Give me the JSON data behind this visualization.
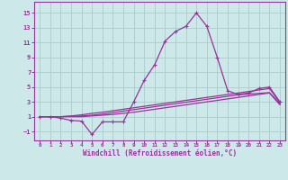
{
  "bg_color": "#cce8e8",
  "grid_color": "#aacccc",
  "line_color": "#993399",
  "xlabel": "Windchill (Refroidissement éolien,°C)",
  "xlim": [
    -0.5,
    23.5
  ],
  "ylim": [
    -2.2,
    16.5
  ],
  "yticks": [
    -1,
    1,
    3,
    5,
    7,
    9,
    11,
    13,
    15
  ],
  "xticks": [
    0,
    1,
    2,
    3,
    4,
    5,
    6,
    7,
    8,
    9,
    10,
    11,
    12,
    13,
    14,
    15,
    16,
    17,
    18,
    19,
    20,
    21,
    22,
    23
  ],
  "series": [
    [
      1.0,
      1.0,
      0.8,
      0.5,
      0.4,
      -1.4,
      0.3,
      0.3,
      0.3,
      3.0,
      5.9,
      8.0,
      11.2,
      12.5,
      13.2,
      15.0,
      13.2,
      9.0,
      4.5,
      4.0,
      4.2,
      4.8,
      5.0,
      3.0
    ],
    [
      1.0,
      1.0,
      1.0,
      1.1,
      1.25,
      1.45,
      1.6,
      1.8,
      2.0,
      2.2,
      2.4,
      2.6,
      2.8,
      3.0,
      3.2,
      3.4,
      3.6,
      3.8,
      4.0,
      4.2,
      4.4,
      4.6,
      4.8,
      2.9
    ],
    [
      1.0,
      1.0,
      1.0,
      1.05,
      1.1,
      1.2,
      1.35,
      1.55,
      1.75,
      1.95,
      2.15,
      2.35,
      2.55,
      2.75,
      2.95,
      3.15,
      3.35,
      3.55,
      3.75,
      3.95,
      4.05,
      4.15,
      4.25,
      2.75
    ],
    [
      1.0,
      1.0,
      1.0,
      1.0,
      1.0,
      1.1,
      1.2,
      1.3,
      1.45,
      1.6,
      1.8,
      2.0,
      2.2,
      2.4,
      2.6,
      2.8,
      3.0,
      3.2,
      3.4,
      3.6,
      3.8,
      4.0,
      4.2,
      2.6
    ]
  ]
}
